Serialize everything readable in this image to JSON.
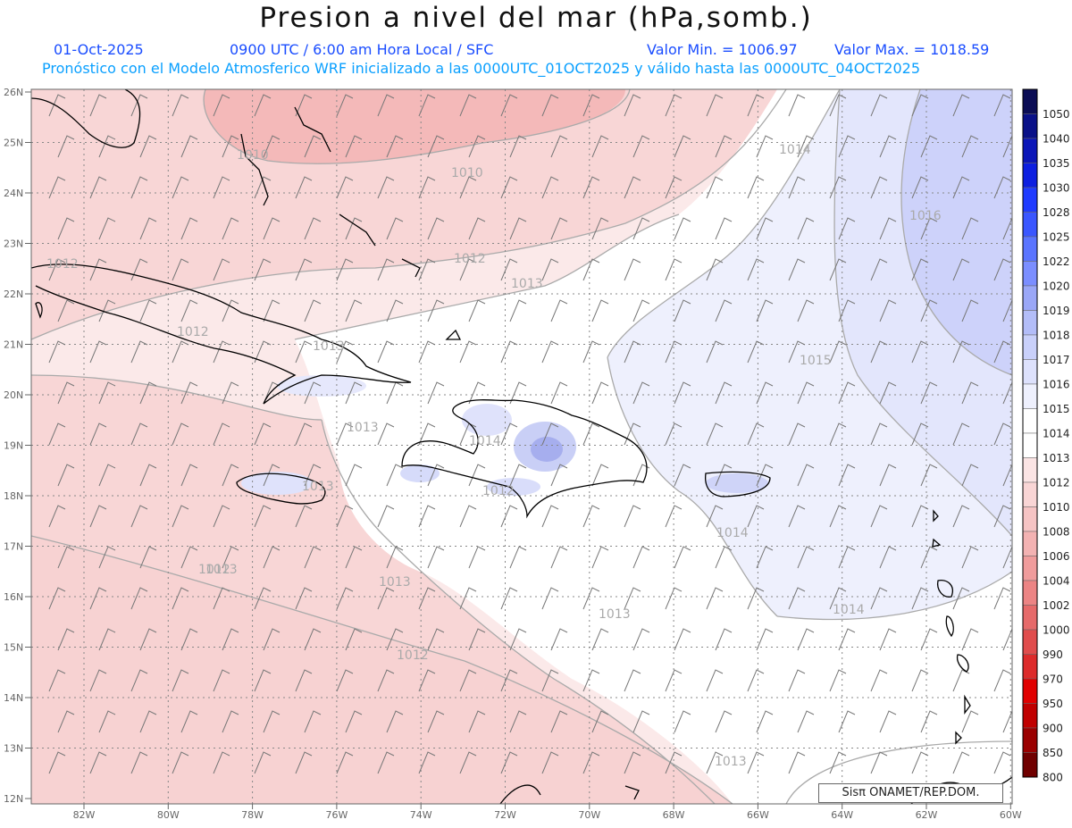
{
  "header": {
    "title": "Presion a nivel del mar (hPa,somb.)",
    "date": "01-Oct-2025",
    "time": "0900 UTC / 6:00 am Hora Local / SFC",
    "min_label": "Valor Min. = 1006.97",
    "max_label": "Valor Max. = 1018.59",
    "model_line": "Pronóstico con el Modelo Atmosferico WRF inicializado a las 0000UTC_01OCT2025 y válido hasta las  0000UTC_04OCT2025"
  },
  "axes": {
    "lat_labels": [
      "26N",
      "25N",
      "24N",
      "23N",
      "22N",
      "21N",
      "20N",
      "19N",
      "18N",
      "17N",
      "16N",
      "15N",
      "14N",
      "13N",
      "12N"
    ],
    "lon_labels": [
      "82W",
      "80W",
      "78W",
      "76W",
      "74W",
      "72W",
      "70W",
      "68W",
      "66W",
      "64W",
      "62W",
      "60W"
    ]
  },
  "colorbar": {
    "levels": [
      "1050",
      "1040",
      "1035",
      "1030",
      "1028",
      "1025",
      "1022",
      "1020",
      "1019",
      "1018",
      "1017",
      "1016",
      "1015",
      "1014",
      "1013",
      "1012",
      "1010",
      "1008",
      "1006",
      "1004",
      "1002",
      "1000",
      "990",
      "970",
      "950",
      "900",
      "850",
      "800"
    ],
    "colors": [
      "#0b0d55",
      "#0a1188",
      "#0b16b8",
      "#0d1fe0",
      "#1f3bff",
      "#3a56ff",
      "#5a74ff",
      "#7b8eff",
      "#9aa7f7",
      "#b3bdf8",
      "#c9d0fa",
      "#dde1fc",
      "#eef0fd",
      "#ffffff",
      "#ffffff",
      "#fbe4e4",
      "#f9d5d5",
      "#f6c4c4",
      "#f3b2b2",
      "#f09c9c",
      "#ec8484",
      "#e66a6a",
      "#e04c4c",
      "#dd2b2b",
      "#e00000",
      "#c00000",
      "#9a0000",
      "#700000"
    ]
  },
  "contour_labels": [
    {
      "text": "1010"
    },
    {
      "text": "1010"
    },
    {
      "text": "1014"
    },
    {
      "text": "1016"
    },
    {
      "text": "1012"
    },
    {
      "text": "1012"
    },
    {
      "text": "1013"
    },
    {
      "text": "1012"
    },
    {
      "text": "1013"
    },
    {
      "text": "1015"
    },
    {
      "text": "1013"
    },
    {
      "text": "1014"
    },
    {
      "text": "1013"
    },
    {
      "text": "1012"
    },
    {
      "text": "1014"
    },
    {
      "text": "1013"
    },
    {
      "text": "1013"
    },
    {
      "text": "1014"
    },
    {
      "text": "1012"
    },
    {
      "text": "1013"
    },
    {
      "text": "1012"
    },
    {
      "text": "1013"
    }
  ],
  "credit": {
    "text": "Sisπ  ONAMET/REP.DOM."
  }
}
